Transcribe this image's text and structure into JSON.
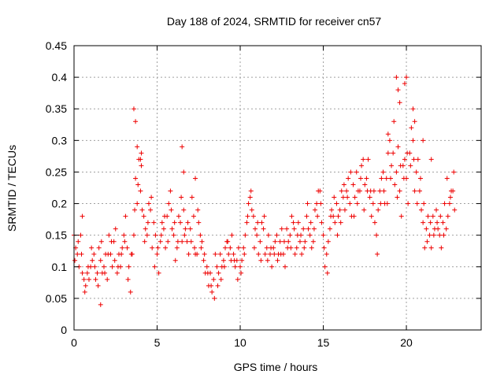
{
  "chart_data": {
    "type": "scatter",
    "title": "Day 188 of 2024, SRMTID for receiver cn57",
    "xlabel": "GPS time / hours",
    "ylabel": "SRMTID / TECUs",
    "xlim": [
      0,
      24.5
    ],
    "ylim": [
      0,
      0.45
    ],
    "x_ticks": [
      0,
      5,
      10,
      15,
      20
    ],
    "x_tick_labels": [
      "0",
      "5",
      "10",
      "15",
      "20"
    ],
    "y_ticks": [
      0,
      0.05,
      0.1,
      0.15,
      0.2,
      0.25,
      0.3,
      0.35,
      0.4,
      0.45
    ],
    "y_tick_labels": [
      "0",
      "0.05",
      "0.1",
      "0.15",
      "0.2",
      "0.25",
      "0.3",
      "0.35",
      "0.4",
      "0.45"
    ],
    "grid": true,
    "marker": "plus",
    "colors": {
      "series": "#ee0000",
      "grid": "#a0a0a0",
      "axis": "#000000"
    },
    "series": [
      {
        "name": "SRMTID",
        "x": [
          0.0,
          0.2,
          0.4,
          0.6,
          0.8,
          1.0,
          1.2,
          1.4,
          1.6,
          1.8,
          2.0,
          2.2,
          2.4,
          2.6,
          2.8,
          3.0,
          3.2,
          3.4,
          3.6,
          3.8,
          4.0,
          4.2,
          4.4,
          4.6,
          4.8,
          5.0,
          5.2,
          5.4,
          5.6,
          5.8,
          6.0,
          6.2,
          6.4,
          6.6,
          6.8,
          7.0,
          7.2,
          7.4,
          7.6,
          7.8,
          8.0,
          8.2,
          8.4,
          8.6,
          8.8,
          9.0,
          9.2,
          9.4,
          9.6,
          9.8,
          10.0,
          10.2,
          10.4,
          10.6,
          10.8,
          11.0,
          11.2,
          11.4,
          11.6,
          11.8,
          12.0,
          12.2,
          12.4,
          12.6,
          12.8,
          13.0,
          13.2,
          13.4,
          13.6,
          13.8,
          14.0,
          14.2,
          14.4,
          14.6,
          14.8,
          15.0,
          15.2,
          15.4,
          15.6,
          15.8,
          16.0,
          16.2,
          16.4,
          16.6,
          16.8,
          17.0,
          17.2,
          17.4,
          17.6,
          17.8,
          18.0,
          18.2,
          18.4,
          18.6,
          18.8,
          19.0,
          19.2,
          19.4,
          19.6,
          19.8,
          20.0,
          20.2,
          20.4,
          20.6,
          20.8,
          21.0,
          21.2,
          21.4,
          21.6,
          21.8,
          22.0,
          22.2,
          22.4,
          22.6,
          22.8,
          0.1,
          0.3,
          0.5,
          0.7,
          0.9,
          1.1,
          1.3,
          1.5,
          1.7,
          1.9,
          2.1,
          2.3,
          2.5,
          2.7,
          2.9,
          3.1,
          3.3,
          3.5,
          3.7,
          3.9,
          4.1,
          4.3,
          4.5,
          4.7,
          4.9,
          5.1,
          5.3,
          5.5,
          5.7,
          5.9,
          6.1,
          6.3,
          6.5,
          6.7,
          6.9,
          7.1,
          7.3,
          7.5,
          7.7,
          7.9,
          8.1,
          8.3,
          8.5,
          8.7,
          8.9,
          9.1,
          9.3,
          9.5,
          9.7,
          9.9,
          10.1,
          10.3,
          10.5,
          10.7,
          10.9,
          11.1,
          11.3,
          11.5,
          11.7,
          11.9,
          12.1,
          12.3,
          12.5,
          12.7,
          12.9,
          13.1,
          13.3,
          13.5,
          13.7,
          13.9,
          14.1,
          14.3,
          14.5,
          14.7,
          14.9,
          15.1,
          15.3,
          15.5,
          15.7,
          15.9,
          16.1,
          16.3,
          16.5,
          16.7,
          16.9,
          17.1,
          17.3,
          17.5,
          17.7,
          17.9,
          18.1,
          18.3,
          18.5,
          18.7,
          18.9,
          19.1,
          19.3,
          19.5,
          19.7,
          19.9,
          20.1,
          20.3,
          20.5,
          20.7,
          20.9,
          21.1,
          21.3,
          21.5,
          21.7,
          21.9,
          22.1,
          22.3,
          22.5,
          22.7,
          22.9,
          0.05,
          0.25,
          0.45,
          0.65,
          0.85,
          1.05,
          1.25,
          1.45,
          1.65,
          1.85,
          2.05,
          2.25,
          2.45,
          2.65,
          2.85,
          3.05,
          3.25,
          3.45,
          3.65,
          3.85,
          4.05,
          4.25,
          4.45,
          4.65,
          4.85,
          5.05,
          5.25,
          5.45,
          5.65,
          5.85,
          6.05,
          6.25,
          6.45,
          6.65,
          6.85,
          7.05,
          7.25,
          7.45,
          7.65,
          7.85,
          8.05,
          8.25,
          8.45,
          8.65,
          8.85,
          9.05,
          9.25,
          9.45,
          9.65,
          9.85,
          10.05,
          10.25,
          10.45,
          10.65,
          10.85,
          11.05,
          11.25,
          11.45,
          11.65,
          11.85,
          12.05,
          12.25,
          12.45,
          12.65,
          12.85,
          13.05,
          13.25,
          13.45,
          13.65,
          13.85,
          14.05,
          14.25,
          14.45,
          14.65,
          14.85,
          15.05,
          15.25,
          15.45,
          15.65,
          15.85,
          16.05,
          16.25,
          16.45,
          16.65,
          16.85,
          17.05,
          17.25,
          17.45,
          17.65,
          17.85,
          18.05,
          18.25,
          18.45,
          18.65,
          18.85,
          19.05,
          19.25,
          19.45,
          19.65,
          19.85,
          20.05,
          20.25,
          20.45,
          20.65,
          20.85,
          21.05,
          21.25,
          21.45,
          21.65,
          21.85,
          22.05,
          22.25,
          22.45,
          22.65,
          22.85,
          0.5,
          1.6,
          3.6,
          3.7,
          3.8,
          4.0,
          4.05,
          6.5,
          6.6,
          7.3,
          19.4,
          19.5,
          19.9,
          20.0,
          20.4,
          20.5,
          21.0,
          21.5,
          18.9,
          19.6
        ],
        "y": [
          0.15,
          0.12,
          0.15,
          0.08,
          0.09,
          0.1,
          0.12,
          0.09,
          0.11,
          0.1,
          0.08,
          0.12,
          0.14,
          0.09,
          0.1,
          0.15,
          0.13,
          0.06,
          0.15,
          0.2,
          0.22,
          0.18,
          0.15,
          0.19,
          0.17,
          0.12,
          0.14,
          0.16,
          0.18,
          0.22,
          0.15,
          0.13,
          0.17,
          0.19,
          0.14,
          0.16,
          0.18,
          0.12,
          0.15,
          0.11,
          0.1,
          0.09,
          0.08,
          0.1,
          0.12,
          0.11,
          0.14,
          0.13,
          0.12,
          0.11,
          0.1,
          0.13,
          0.17,
          0.21,
          0.18,
          0.15,
          0.14,
          0.16,
          0.13,
          0.12,
          0.13,
          0.15,
          0.14,
          0.12,
          0.16,
          0.15,
          0.17,
          0.13,
          0.14,
          0.16,
          0.18,
          0.15,
          0.14,
          0.2,
          0.22,
          0.15,
          0.12,
          0.16,
          0.18,
          0.2,
          0.19,
          0.21,
          0.22,
          0.2,
          0.23,
          0.25,
          0.22,
          0.27,
          0.24,
          0.21,
          0.2,
          0.15,
          0.22,
          0.25,
          0.24,
          0.3,
          0.28,
          0.25,
          0.22,
          0.26,
          0.24,
          0.28,
          0.3,
          0.25,
          0.22,
          0.17,
          0.16,
          0.15,
          0.18,
          0.19,
          0.15,
          0.17,
          0.16,
          0.2,
          0.22,
          0.13,
          0.1,
          0.09,
          0.07,
          0.08,
          0.11,
          0.08,
          0.13,
          0.09,
          0.12,
          0.15,
          0.1,
          0.16,
          0.12,
          0.13,
          0.18,
          0.1,
          0.12,
          0.24,
          0.27,
          0.19,
          0.16,
          0.2,
          0.13,
          0.15,
          0.09,
          0.17,
          0.13,
          0.2,
          0.16,
          0.11,
          0.18,
          0.14,
          0.16,
          0.12,
          0.21,
          0.12,
          0.17,
          0.14,
          0.09,
          0.07,
          0.06,
          0.12,
          0.09,
          0.1,
          0.13,
          0.12,
          0.15,
          0.1,
          0.13,
          0.11,
          0.15,
          0.2,
          0.19,
          0.16,
          0.12,
          0.17,
          0.12,
          0.15,
          0.1,
          0.14,
          0.12,
          0.16,
          0.1,
          0.14,
          0.18,
          0.12,
          0.17,
          0.12,
          0.14,
          0.16,
          0.13,
          0.19,
          0.22,
          0.17,
          0.1,
          0.14,
          0.19,
          0.17,
          0.18,
          0.22,
          0.19,
          0.24,
          0.18,
          0.21,
          0.22,
          0.26,
          0.23,
          0.27,
          0.18,
          0.17,
          0.19,
          0.24,
          0.2,
          0.28,
          0.26,
          0.23,
          0.29,
          0.18,
          0.27,
          0.2,
          0.32,
          0.22,
          0.27,
          0.19,
          0.13,
          0.18,
          0.13,
          0.16,
          0.16,
          0.13,
          0.2,
          0.18,
          0.22,
          0.19,
          0.11,
          0.14,
          0.12,
          0.06,
          0.1,
          0.13,
          0.1,
          0.07,
          0.14,
          0.09,
          0.12,
          0.14,
          0.11,
          0.1,
          0.12,
          0.14,
          0.08,
          0.12,
          0.19,
          0.23,
          0.26,
          0.14,
          0.17,
          0.21,
          0.1,
          0.13,
          0.15,
          0.18,
          0.14,
          0.19,
          0.17,
          0.14,
          0.21,
          0.15,
          0.17,
          0.14,
          0.13,
          0.19,
          0.13,
          0.12,
          0.09,
          0.07,
          0.05,
          0.07,
          0.08,
          0.1,
          0.14,
          0.11,
          0.11,
          0.08,
          0.09,
          0.12,
          0.18,
          0.22,
          0.13,
          0.17,
          0.11,
          0.18,
          0.11,
          0.13,
          0.12,
          0.11,
          0.12,
          0.14,
          0.13,
          0.13,
          0.16,
          0.15,
          0.15,
          0.13,
          0.2,
          0.17,
          0.16,
          0.18,
          0.2,
          0.13,
          0.09,
          0.18,
          0.21,
          0.15,
          0.17,
          0.23,
          0.21,
          0.25,
          0.18,
          0.2,
          0.24,
          0.19,
          0.22,
          0.22,
          0.22,
          0.12,
          0.2,
          0.22,
          0.2,
          0.24,
          0.33,
          0.21,
          0.26,
          0.24,
          0.28,
          0.26,
          0.27,
          0.2,
          0.24,
          0.2,
          0.14,
          0.17,
          0.15,
          0.17,
          0.18,
          0.15,
          0.24,
          0.21,
          0.25,
          0.18,
          0.04,
          0.35,
          0.33,
          0.29,
          0.27,
          0.28,
          0.29,
          0.25,
          0.24,
          0.4,
          0.38,
          0.39,
          0.4,
          0.35,
          0.33,
          0.3,
          0.27,
          0.31,
          0.36
        ]
      }
    ]
  }
}
